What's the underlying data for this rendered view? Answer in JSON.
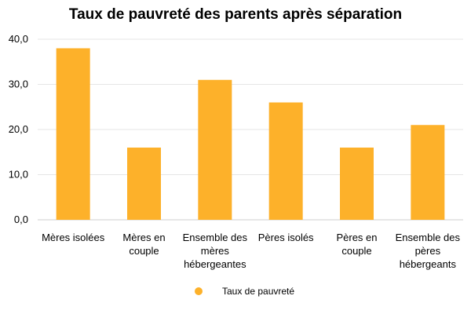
{
  "chart_data": {
    "type": "bar",
    "title": "Taux de pauvreté des parents après séparation",
    "categories": [
      [
        "Mères isolées"
      ],
      [
        "Mères en",
        "couple"
      ],
      [
        "Ensemble des",
        "mères",
        "hébergeantes"
      ],
      [
        "Pères isolés"
      ],
      [
        "Pères en",
        "couple"
      ],
      [
        "Ensemble des",
        "pères",
        "hébergeants"
      ]
    ],
    "series": [
      {
        "name": "Taux de pauvreté",
        "values": [
          38,
          16,
          31,
          26,
          16,
          21
        ],
        "color": "#FDB12A"
      }
    ],
    "ylim": [
      0,
      40
    ],
    "yticks": [
      "0,0",
      "10,0",
      "20,0",
      "30,0",
      "40,0"
    ],
    "ytick_values": [
      0,
      10,
      20,
      30,
      40
    ],
    "grid": true,
    "legend_position": "bottom"
  }
}
